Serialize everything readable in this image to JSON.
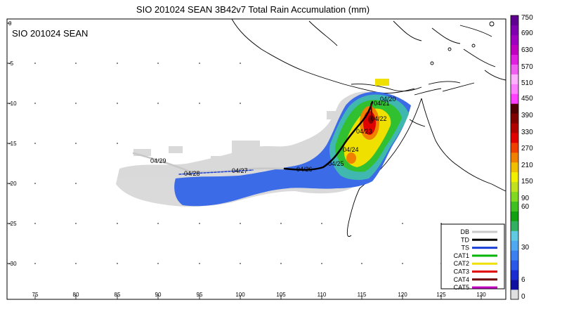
{
  "title": "SIO 201024 SEAN 3B42v7 Total Rain Accumulation (mm)",
  "map_label": "SIO 201024 SEAN",
  "lon_ticks": [
    "75",
    "80",
    "85",
    "90",
    "95",
    "100",
    "105",
    "110",
    "115",
    "120",
    "125",
    "130"
  ],
  "lat_ticks": [
    "0",
    "-5",
    "-10",
    "-15",
    "-20",
    "-25",
    "-30"
  ],
  "track_dates": [
    "04/20",
    "04/21",
    "04/22",
    "04/23",
    "04/24",
    "04/25",
    "04/26",
    "04/27",
    "04/28",
    "04/29"
  ],
  "legend": {
    "items": [
      {
        "label": "DB",
        "color": "#c8c8c8"
      },
      {
        "label": "TD",
        "color": "#000000"
      },
      {
        "label": "TS",
        "color": "#1a3fd6"
      },
      {
        "label": "CAT1",
        "color": "#00b400"
      },
      {
        "label": "CAT2",
        "color": "#f0e000"
      },
      {
        "label": "CAT3",
        "color": "#e00000"
      },
      {
        "label": "CAT4",
        "color": "#6a0000"
      },
      {
        "label": "CAT5",
        "color": "#c000c0"
      }
    ]
  },
  "colorbar": {
    "unit": "mm",
    "labels": [
      "750",
      "690",
      "630",
      "570",
      "510",
      "450",
      "390",
      "330",
      "270",
      "210",
      "150",
      "90",
      "60",
      "30",
      "6",
      "0"
    ],
    "colors": [
      "#e0e0e0",
      "#1010a0",
      "#1c2cd0",
      "#2c58e8",
      "#3c80f0",
      "#50a8f0",
      "#60c8e0",
      "#30b060",
      "#10a010",
      "#40c020",
      "#80d820",
      "#c0e020",
      "#f0f000",
      "#f0c000",
      "#f08000",
      "#f04000",
      "#e00000",
      "#b00000",
      "#800000",
      "#500000",
      "#ff40ff",
      "#ff80ff",
      "#ffb0ff",
      "#f060f0",
      "#e020e0",
      "#c000c0",
      "#a000c0",
      "#8000b0",
      "#600090"
    ]
  }
}
